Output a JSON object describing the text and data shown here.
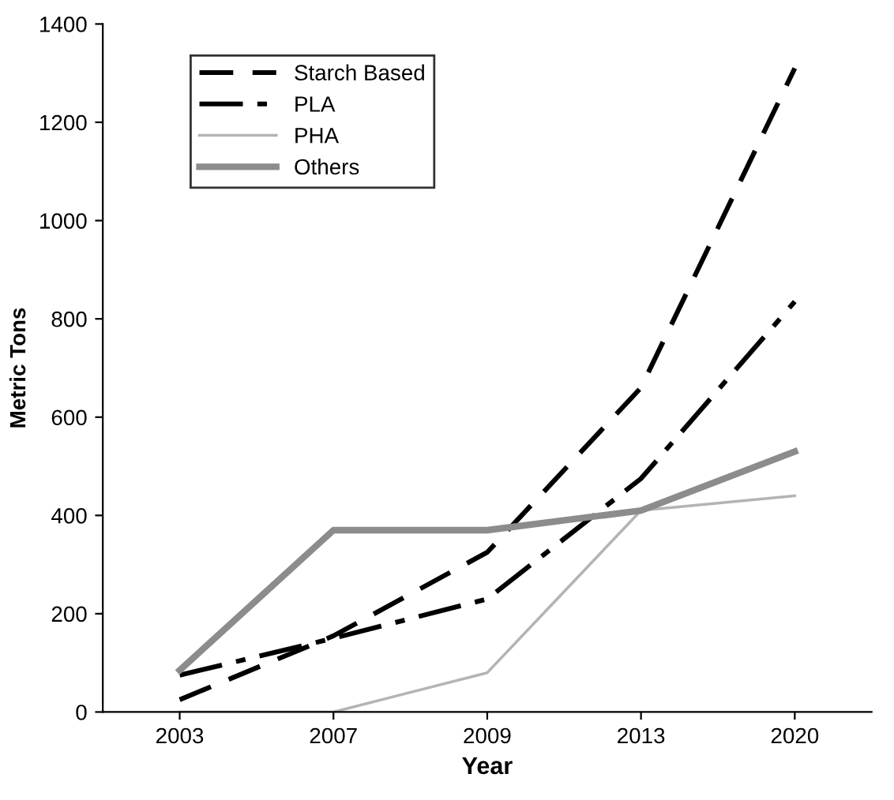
{
  "chart_data": {
    "type": "line",
    "xlabel": "Year",
    "ylabel": "Metric Tons",
    "categories": [
      "2003",
      "2007",
      "2009",
      "2013",
      "2020"
    ],
    "series": [
      {
        "name": "Starch Based",
        "color": "#000000",
        "line_style": "dashed",
        "values": [
          25,
          155,
          325,
          660,
          1310
        ]
      },
      {
        "name": "PLA",
        "color": "#000000",
        "line_style": "dashdot",
        "values": [
          75,
          150,
          230,
          475,
          835
        ]
      },
      {
        "name": "PHA",
        "color": "#b4b4b4",
        "line_style": "solid",
        "values": [
          0,
          0,
          80,
          410,
          440
        ]
      },
      {
        "name": "Others",
        "color": "#8c8c8c",
        "line_style": "solid",
        "values": [
          85,
          370,
          370,
          410,
          530
        ]
      }
    ],
    "ylim": [
      0,
      1400
    ],
    "yticks": [
      0,
      200,
      400,
      600,
      800,
      1000,
      1200,
      1400
    ],
    "grid": false,
    "legend": "top left",
    "marker": "none"
  }
}
